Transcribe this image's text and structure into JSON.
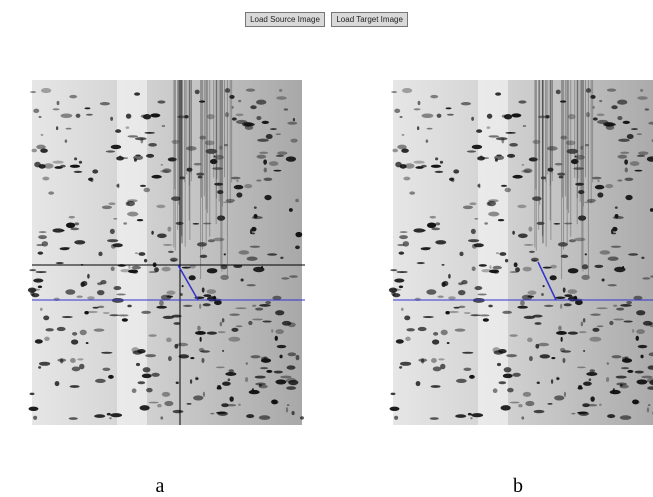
{
  "toolbar": {
    "buttons": [
      "Load Source Image",
      "Load Target Image"
    ]
  },
  "panels": [
    {
      "caption": "a"
    },
    {
      "caption": "b"
    }
  ]
}
